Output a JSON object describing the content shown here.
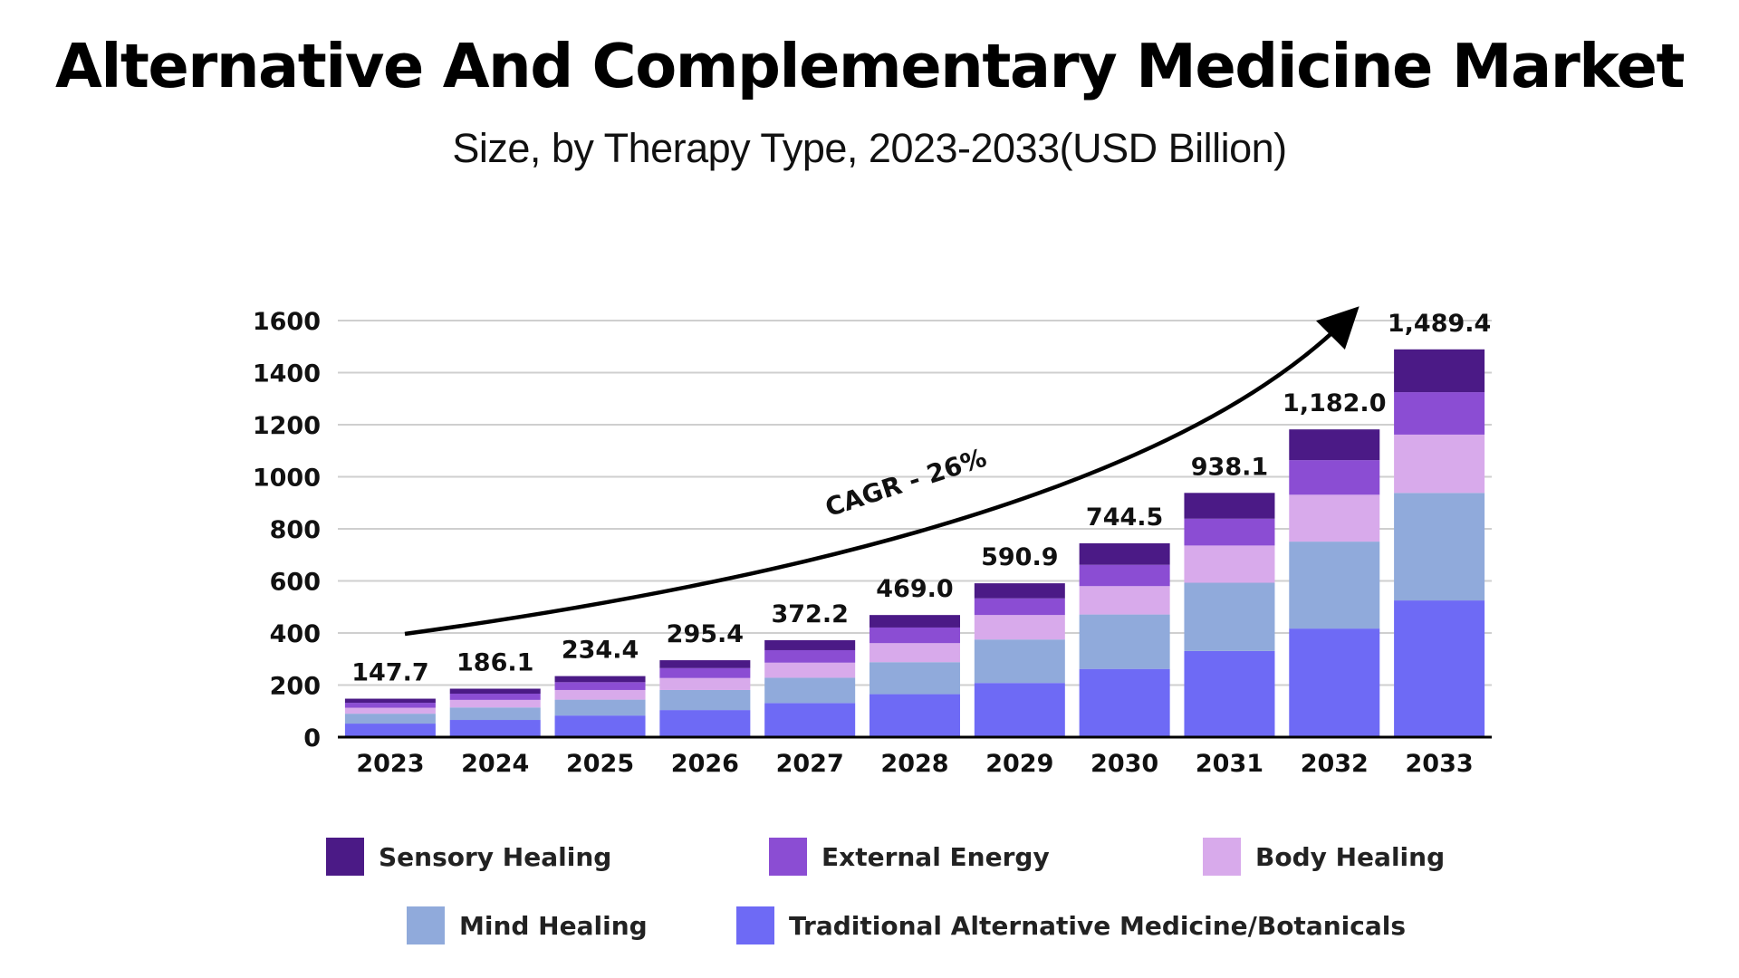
{
  "header": {
    "title": "Alternative And Complementary Medicine Market",
    "subtitle": "Size, by Therapy Type, 2023-2033(USD Billion)"
  },
  "chart_data": {
    "type": "bar",
    "stacked": true,
    "title": "Alternative And Complementary Medicine Market",
    "subtitle": "Size, by Therapy Type, 2023-2033(USD Billion)",
    "xlabel": "",
    "ylabel": "",
    "ylim": [
      0,
      1600
    ],
    "yticks": [
      "0",
      "200",
      "400",
      "600",
      "800",
      "1000",
      "1200",
      "1400",
      "1600"
    ],
    "grid": true,
    "categories": [
      "2023",
      "2024",
      "2025",
      "2026",
      "2027",
      "2028",
      "2029",
      "2030",
      "2031",
      "2032",
      "2033"
    ],
    "totals": [
      "147.7",
      "186.1",
      "234.4",
      "295.4",
      "372.2",
      "469.0",
      "590.9",
      "744.5",
      "938.1",
      "1,182.0",
      "1,489.4"
    ],
    "series": [
      {
        "name": "Traditional Alternative Medicine/Botanicals",
        "color": "#6E6AF5",
        "values": [
          52,
          66,
          83,
          104,
          131,
          165,
          208,
          262,
          331,
          417,
          525
        ]
      },
      {
        "name": "Mind Healing",
        "color": "#90AADB",
        "values": [
          38,
          48,
          61,
          77,
          97,
          123,
          167,
          209,
          262,
          334,
          413
        ]
      },
      {
        "name": "Body Healing",
        "color": "#D8AAEB",
        "values": [
          23,
          29,
          37,
          46,
          58,
          73,
          94,
          109,
          143,
          180,
          224
        ]
      },
      {
        "name": "External Energy",
        "color": "#8B4DD3",
        "values": [
          19,
          24,
          30,
          38,
          48,
          60,
          64,
          82,
          103,
          133,
          163
        ]
      },
      {
        "name": "Sensory Healing",
        "color": "#4B1A86",
        "values": [
          15.7,
          19.1,
          23.4,
          30.4,
          38.2,
          48.0,
          57.9,
          82.5,
          99.1,
          118.0,
          164.4
        ]
      }
    ],
    "annotations": [
      {
        "text": "CAGR - 26%",
        "type": "arrow",
        "direction": "up-right"
      }
    ],
    "legend": {
      "placement": "bottom",
      "order": [
        "Sensory Healing",
        "External Energy",
        "Body Healing",
        "Mind Healing",
        "Traditional Alternative Medicine/Botanicals"
      ]
    }
  }
}
